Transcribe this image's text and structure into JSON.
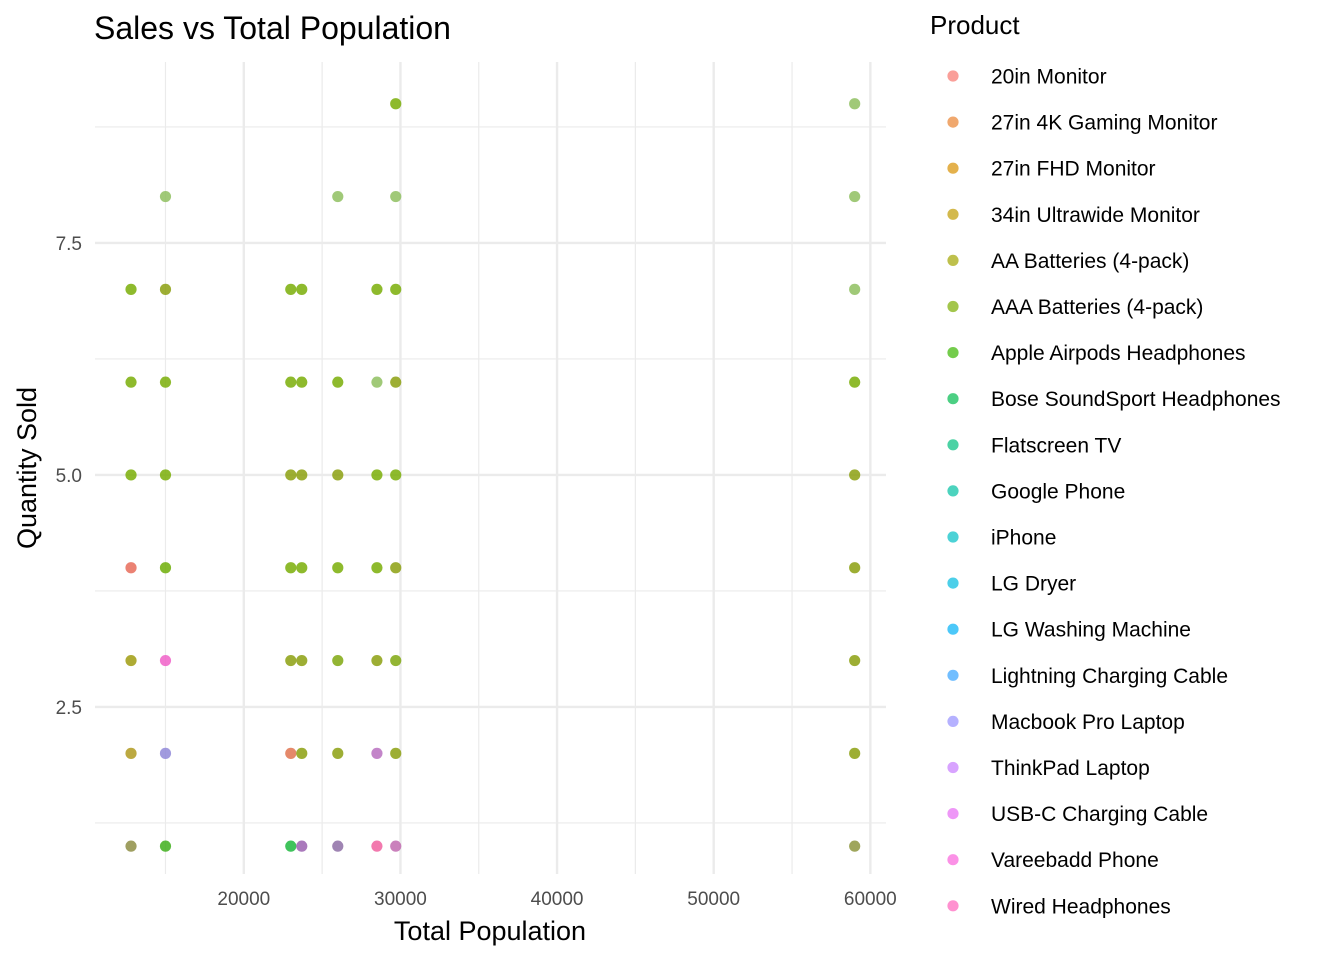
{
  "chart_data": {
    "type": "scatter",
    "title": "Sales vs Total Population",
    "xlabel": "Total Population",
    "ylabel": "Quantity Sold",
    "xlim": [
      10500,
      61000
    ],
    "ylim": [
      0.7,
      9.45
    ],
    "x_ticks": [
      20000,
      30000,
      40000,
      50000,
      60000
    ],
    "x_minor_ticks": [
      15000,
      25000,
      35000,
      45000,
      55000
    ],
    "y_ticks": [
      2.5,
      5.0,
      7.5
    ],
    "y_tick_labels": [
      "2.5",
      "5.0",
      "7.5"
    ],
    "y_minor_ticks": [
      1.25,
      3.75,
      6.25,
      8.75
    ],
    "grid": true,
    "legend_position": "right",
    "legend": {
      "title": "Product",
      "entries": [
        {
          "label": "20in Monitor",
          "color": "#F8766D"
        },
        {
          "label": "27in 4K Gaming Monitor",
          "color": "#EA8331"
        },
        {
          "label": "27in FHD Monitor",
          "color": "#D89000"
        },
        {
          "label": "34in Ultrawide Monitor",
          "color": "#C09B00"
        },
        {
          "label": "AA Batteries (4-pack)",
          "color": "#A3A500"
        },
        {
          "label": "AAA Batteries (4-pack)",
          "color": "#7CAE00"
        },
        {
          "label": "Apple Airpods Headphones",
          "color": "#39B600"
        },
        {
          "label": "Bose SoundSport Headphones",
          "color": "#00BB4E"
        },
        {
          "label": "Flatscreen TV",
          "color": "#00BF7D"
        },
        {
          "label": "Google Phone",
          "color": "#00C1A3"
        },
        {
          "label": "iPhone",
          "color": "#00BFC4"
        },
        {
          "label": "LG Dryer",
          "color": "#00BAE0"
        },
        {
          "label": "LG Washing Machine",
          "color": "#00B0F6"
        },
        {
          "label": "Lightning Charging Cable",
          "color": "#35A2FF"
        },
        {
          "label": "Macbook Pro Laptop",
          "color": "#9590FF"
        },
        {
          "label": "ThinkPad Laptop",
          "color": "#C77CFF"
        },
        {
          "label": "USB-C Charging Cable",
          "color": "#E76BF3"
        },
        {
          "label": "Vareebadd Phone",
          "color": "#FA62DB"
        },
        {
          "label": "Wired Headphones",
          "color": "#FF62BC"
        }
      ]
    },
    "points": [
      {
        "x": 12800,
        "y": 1,
        "color": "#8E8E45"
      },
      {
        "x": 15000,
        "y": 1,
        "color": "#3FAF1C"
      },
      {
        "x": 23000,
        "y": 1,
        "color": "#1FB840"
      },
      {
        "x": 23700,
        "y": 1,
        "color": "#9B62B0"
      },
      {
        "x": 26000,
        "y": 1,
        "color": "#8E6FA6"
      },
      {
        "x": 28500,
        "y": 1,
        "color": "#F062A0"
      },
      {
        "x": 29700,
        "y": 1,
        "color": "#C16BB0"
      },
      {
        "x": 59000,
        "y": 1,
        "color": "#8E9640"
      },
      {
        "x": 12800,
        "y": 2,
        "color": "#B09A20"
      },
      {
        "x": 15000,
        "y": 2,
        "color": "#9088D8"
      },
      {
        "x": 23000,
        "y": 2,
        "color": "#E07450"
      },
      {
        "x": 23700,
        "y": 2,
        "color": "#8CA010"
      },
      {
        "x": 26000,
        "y": 2,
        "color": "#8CA010"
      },
      {
        "x": 28500,
        "y": 2,
        "color": "#B870C0"
      },
      {
        "x": 29700,
        "y": 2,
        "color": "#8CA010"
      },
      {
        "x": 59000,
        "y": 2,
        "color": "#8CA010"
      },
      {
        "x": 12800,
        "y": 3,
        "color": "#A09C10"
      },
      {
        "x": 15000,
        "y": 3,
        "color": "#F060C8"
      },
      {
        "x": 23000,
        "y": 3,
        "color": "#8CA010"
      },
      {
        "x": 23700,
        "y": 3,
        "color": "#8CA010"
      },
      {
        "x": 26000,
        "y": 3,
        "color": "#80A810"
      },
      {
        "x": 28500,
        "y": 3,
        "color": "#8CA010"
      },
      {
        "x": 29700,
        "y": 3,
        "color": "#80A810"
      },
      {
        "x": 59000,
        "y": 3,
        "color": "#8CA010"
      },
      {
        "x": 12800,
        "y": 4,
        "color": "#E86C5A"
      },
      {
        "x": 15000,
        "y": 4,
        "color": "#6FAE08"
      },
      {
        "x": 23000,
        "y": 4,
        "color": "#7AAE08"
      },
      {
        "x": 23700,
        "y": 4,
        "color": "#7AAE08"
      },
      {
        "x": 26000,
        "y": 4,
        "color": "#7AAE08"
      },
      {
        "x": 28500,
        "y": 4,
        "color": "#7AAE08"
      },
      {
        "x": 29700,
        "y": 4,
        "color": "#8CA010"
      },
      {
        "x": 59000,
        "y": 4,
        "color": "#8CA010"
      },
      {
        "x": 12800,
        "y": 5,
        "color": "#7AAE08"
      },
      {
        "x": 15000,
        "y": 5,
        "color": "#7AAE08"
      },
      {
        "x": 23000,
        "y": 5,
        "color": "#8CA010"
      },
      {
        "x": 23700,
        "y": 5,
        "color": "#8CA010"
      },
      {
        "x": 26000,
        "y": 5,
        "color": "#8CA010"
      },
      {
        "x": 28500,
        "y": 5,
        "color": "#7AAE08"
      },
      {
        "x": 29700,
        "y": 5,
        "color": "#7AAE08"
      },
      {
        "x": 59000,
        "y": 5,
        "color": "#8CA010"
      },
      {
        "x": 12800,
        "y": 6,
        "color": "#7AAE08"
      },
      {
        "x": 15000,
        "y": 6,
        "color": "#7AAE08"
      },
      {
        "x": 23000,
        "y": 6,
        "color": "#7AAE08"
      },
      {
        "x": 23700,
        "y": 6,
        "color": "#7AAE08"
      },
      {
        "x": 26000,
        "y": 6,
        "color": "#7AAE08"
      },
      {
        "x": 28500,
        "y": 6,
        "color": "#8FC060"
      },
      {
        "x": 29700,
        "y": 6,
        "color": "#8CA010"
      },
      {
        "x": 59000,
        "y": 6,
        "color": "#7AAE08"
      },
      {
        "x": 12800,
        "y": 7,
        "color": "#7AAE08"
      },
      {
        "x": 15000,
        "y": 7,
        "color": "#8CA010"
      },
      {
        "x": 23000,
        "y": 7,
        "color": "#7AAE08"
      },
      {
        "x": 23700,
        "y": 7,
        "color": "#7AAE08"
      },
      {
        "x": 28500,
        "y": 7,
        "color": "#7AAE08"
      },
      {
        "x": 29700,
        "y": 7,
        "color": "#7AAE08"
      },
      {
        "x": 59000,
        "y": 7,
        "color": "#8FC060"
      },
      {
        "x": 15000,
        "y": 8,
        "color": "#8FC060"
      },
      {
        "x": 26000,
        "y": 8,
        "color": "#8FC060"
      },
      {
        "x": 29700,
        "y": 8,
        "color": "#8FC060"
      },
      {
        "x": 59000,
        "y": 8,
        "color": "#8FC060"
      },
      {
        "x": 29700,
        "y": 9,
        "color": "#7AAE08"
      },
      {
        "x": 59000,
        "y": 9,
        "color": "#8FC060"
      }
    ]
  }
}
